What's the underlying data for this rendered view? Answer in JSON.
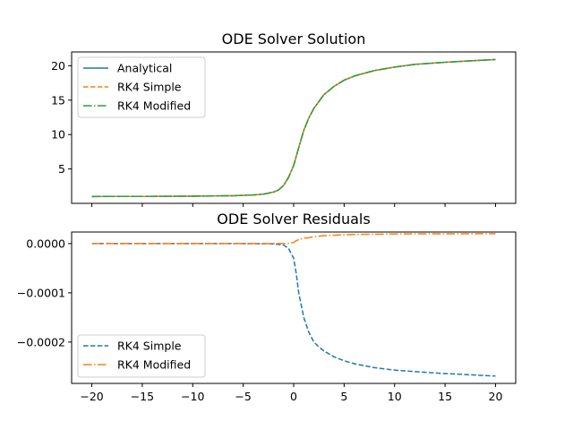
{
  "chart_data": [
    {
      "type": "line",
      "title": "ODE Solver Solution",
      "xlabel": "",
      "ylabel": "",
      "xlim": [
        -22,
        22
      ],
      "ylim": [
        -0.0,
        22.0
      ],
      "xticks": [
        -20,
        -15,
        -10,
        -5,
        0,
        5,
        10,
        15,
        20
      ],
      "xtick_labels_visible": false,
      "yticks": [
        5,
        10,
        15,
        20
      ],
      "grid": false,
      "legend": "upper-left",
      "x": [
        -20,
        -15,
        -10,
        -6,
        -4,
        -3,
        -2,
        -1.5,
        -1,
        -0.5,
        0,
        0.5,
        1,
        1.5,
        2,
        3,
        4,
        5,
        6,
        8,
        10,
        12,
        15,
        18,
        20
      ],
      "series": [
        {
          "name": "Analytical",
          "color": "#1f77b4",
          "dash": "solid",
          "values": [
            1.0,
            1.01,
            1.04,
            1.11,
            1.22,
            1.34,
            1.63,
            1.95,
            2.6,
            3.8,
            5.5,
            8.1,
            10.6,
            12.4,
            13.8,
            15.8,
            17.0,
            17.9,
            18.5,
            19.3,
            19.8,
            20.2,
            20.5,
            20.75,
            20.9
          ]
        },
        {
          "name": "RK4 Simple",
          "color": "#ff7f0e",
          "dash": "dashed",
          "values": [
            1.0,
            1.01,
            1.04,
            1.11,
            1.22,
            1.34,
            1.63,
            1.95,
            2.6,
            3.8,
            5.5,
            8.1,
            10.6,
            12.4,
            13.8,
            15.8,
            17.0,
            17.9,
            18.5,
            19.3,
            19.8,
            20.2,
            20.5,
            20.75,
            20.9
          ]
        },
        {
          "name": "RK4 Modified",
          "color": "#2ca02c",
          "dash": "dashdot",
          "values": [
            1.0,
            1.01,
            1.04,
            1.11,
            1.22,
            1.34,
            1.63,
            1.95,
            2.6,
            3.8,
            5.5,
            8.1,
            10.6,
            12.4,
            13.8,
            15.8,
            17.0,
            17.9,
            18.5,
            19.3,
            19.8,
            20.2,
            20.5,
            20.75,
            20.9
          ]
        }
      ]
    },
    {
      "type": "line",
      "title": "ODE Solver Residuals",
      "xlabel": "",
      "ylabel": "",
      "xlim": [
        -22,
        22
      ],
      "ylim": [
        -0.000284,
        2.35e-05
      ],
      "xticks": [
        -20,
        -15,
        -10,
        -5,
        0,
        5,
        10,
        15,
        20
      ],
      "xtick_labels": [
        "−20",
        "−15",
        "−10",
        "−5",
        "0",
        "5",
        "10",
        "15",
        "20"
      ],
      "yticks": [
        0.0,
        -0.0001,
        -0.0002
      ],
      "ytick_labels": [
        "0.0000",
        "−0.0001",
        "−0.0002"
      ],
      "grid": false,
      "legend": "lower-left",
      "x": [
        -20,
        -15,
        -10,
        -5,
        -2,
        -1,
        -0.5,
        0,
        0.25,
        0.5,
        1,
        1.5,
        2,
        2.5,
        3,
        4,
        5,
        6,
        8,
        10,
        12,
        15,
        18,
        20
      ],
      "series": [
        {
          "name": "RK4 Simple",
          "color": "#1f77b4",
          "dash": "dashed",
          "values": [
            0.0,
            0.0,
            0.0,
            0.0,
            -5e-07,
            -3e-06,
            -1e-05,
            -3e-05,
            -6e-05,
            -0.0001,
            -0.00015,
            -0.00018,
            -0.0002,
            -0.00021,
            -0.000218,
            -0.00023,
            -0.000238,
            -0.000244,
            -0.000252,
            -0.000257,
            -0.00026,
            -0.000264,
            -0.000267,
            -0.000269
          ]
        },
        {
          "name": "RK4 Modified",
          "color": "#ff7f0e",
          "dash": "dashdot",
          "values": [
            0.0,
            0.0,
            0.0,
            0.0,
            0.0,
            0.0,
            5e-07,
            2e-06,
            6e-06,
            8e-06,
            1.1e-05,
            1.2e-05,
            1.4e-05,
            1.5e-05,
            1.6e-05,
            1.7e-05,
            1.8e-05,
            1.85e-05,
            1.9e-05,
            1.95e-05,
            1.98e-05,
            1.99e-05,
            2e-05,
            2e-05
          ]
        }
      ]
    }
  ]
}
